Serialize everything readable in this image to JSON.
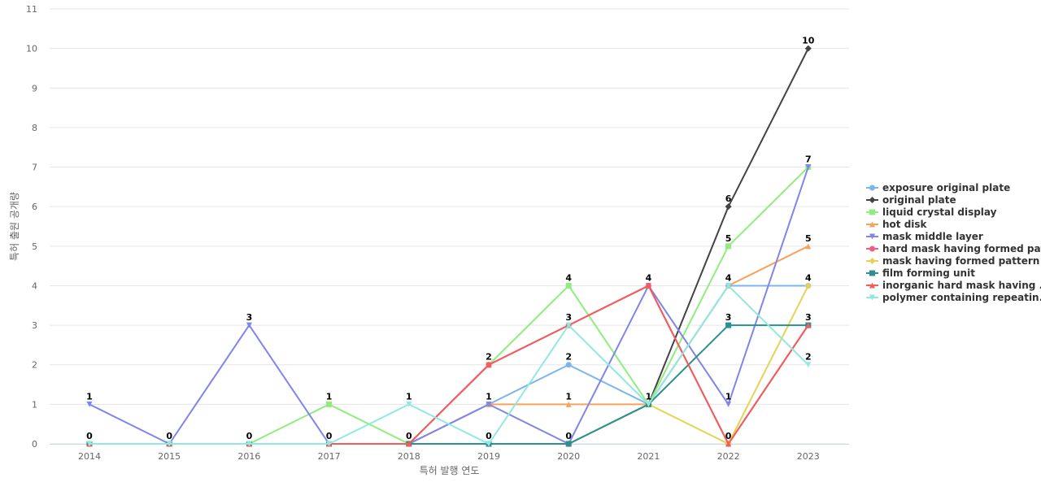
{
  "chart_data": {
    "type": "line",
    "title": "",
    "xlabel": "특허 발행 연도",
    "ylabel": "특허 출원 공개량",
    "x": [
      "2014",
      "2015",
      "2016",
      "2017",
      "2018",
      "2019",
      "2020",
      "2021",
      "2022",
      "2023"
    ],
    "ylim": [
      0,
      11
    ],
    "yticks": [
      0,
      1,
      2,
      3,
      4,
      5,
      6,
      7,
      8,
      9,
      10,
      11
    ],
    "grid": true,
    "legend_position": "right",
    "series": [
      {
        "name": "exposure original plate",
        "color": "#7cb5ec",
        "marker": "circle",
        "values": [
          0,
          0,
          0,
          0,
          0,
          1,
          2,
          1,
          4,
          4
        ]
      },
      {
        "name": "original plate",
        "color": "#434348",
        "marker": "diamond",
        "values": [
          0,
          0,
          0,
          0,
          0,
          0,
          0,
          1,
          6,
          10
        ]
      },
      {
        "name": "liquid crystal display",
        "color": "#90ed7d",
        "marker": "square",
        "values": [
          0,
          0,
          0,
          1,
          0,
          2,
          4,
          1,
          5,
          7
        ]
      },
      {
        "name": "hot disk",
        "color": "#f7a35c",
        "marker": "triangle",
        "values": [
          0,
          0,
          0,
          0,
          0,
          1,
          1,
          1,
          4,
          5
        ]
      },
      {
        "name": "mask middle layer",
        "color": "#8085e9",
        "marker": "triangle-down",
        "values": [
          1,
          0,
          3,
          0,
          0,
          1,
          0,
          4,
          1,
          7
        ]
      },
      {
        "name": "hard mask having formed pat...",
        "color": "#f15c80",
        "marker": "circle",
        "values": [
          0,
          0,
          0,
          0,
          0,
          2,
          3,
          4,
          0,
          3
        ]
      },
      {
        "name": "mask having formed pattern",
        "color": "#e4d354",
        "marker": "diamond",
        "values": [
          0,
          0,
          0,
          0,
          0,
          0,
          0,
          1,
          0,
          4
        ]
      },
      {
        "name": "film forming unit",
        "color": "#2b908f",
        "marker": "square",
        "values": [
          0,
          0,
          0,
          0,
          0,
          0,
          0,
          1,
          3,
          3
        ]
      },
      {
        "name": "inorganic hard mask having ...",
        "color": "#f45b5b",
        "marker": "triangle",
        "values": [
          0,
          0,
          0,
          0,
          0,
          2,
          3,
          4,
          0,
          3
        ]
      },
      {
        "name": "polymer containing repeatin...",
        "color": "#91e8e1",
        "marker": "triangle-down",
        "values": [
          0,
          0,
          0,
          0,
          1,
          0,
          3,
          1,
          4,
          2
        ]
      }
    ],
    "data_labels": [
      {
        "x": "2014",
        "values": [
          "1",
          "0"
        ]
      },
      {
        "x": "2015",
        "values": [
          "0"
        ]
      },
      {
        "x": "2016",
        "values": [
          "3",
          "0"
        ]
      },
      {
        "x": "2017",
        "values": [
          "1",
          "0"
        ]
      },
      {
        "x": "2018",
        "values": [
          "1",
          "0"
        ]
      },
      {
        "x": "2019",
        "values": [
          "2",
          "1",
          "0"
        ]
      },
      {
        "x": "2020",
        "values": [
          "4",
          "3",
          "2",
          "1",
          "0"
        ]
      },
      {
        "x": "2021",
        "values": [
          "4",
          "1"
        ]
      },
      {
        "x": "2022",
        "values": [
          "6",
          "5",
          "4",
          "3",
          "1",
          "0"
        ]
      },
      {
        "x": "2023",
        "values": [
          "10",
          "7",
          "5",
          "4",
          "3",
          "2"
        ]
      }
    ]
  }
}
